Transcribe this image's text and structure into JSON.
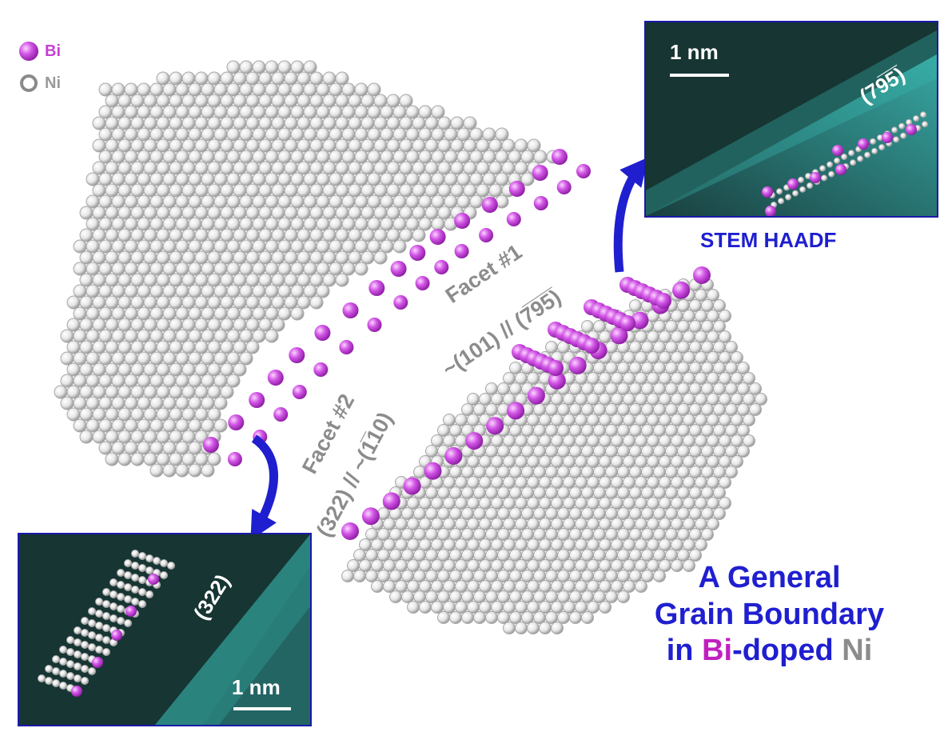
{
  "legend": [
    {
      "symbol": "Bi",
      "color": "#c63fd6"
    },
    {
      "symbol": "Ni",
      "color": "#9a9a9a"
    }
  ],
  "facets": {
    "facet1_title": "Facet #1",
    "facet1_planes": "~(101) // (7̅9̅5̅)",
    "facet2_title": "Facet #2",
    "facet2_planes": "(322) // ~(1̅10)"
  },
  "inset_top": {
    "scale_label": "1 nm",
    "plane_label": "(79̅5̅)",
    "caption": "STEM HAADF"
  },
  "inset_bottom": {
    "scale_label": "1 nm",
    "plane_label": "(322)"
  },
  "title": {
    "line1": "A General",
    "line2": "Grain Boundary",
    "line3_pre": "in ",
    "line3_bi": "Bi",
    "line3_mid": "-doped ",
    "line3_ni": "Ni"
  },
  "colors": {
    "bi": "#c63fd6",
    "ni": "#9a9a9a",
    "arrow": "#1f1fd0",
    "stem": "#1d6e6e"
  }
}
